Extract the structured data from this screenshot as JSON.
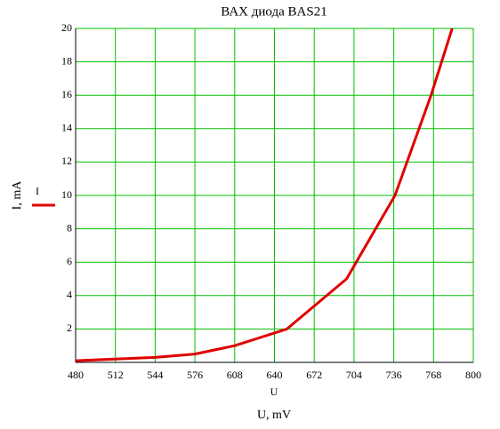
{
  "chart_data": {
    "type": "line",
    "title": "ВАХ диода BAS21",
    "x_axis_label": "U",
    "x_axis_title": "U, mV",
    "y_axis_label": "I, mA",
    "x": [
      480,
      512,
      544,
      576,
      608,
      650,
      698,
      737,
      766,
      783
    ],
    "series": [
      {
        "name": "I",
        "color": "#e00000",
        "values": [
          0.1,
          0.2,
          0.3,
          0.5,
          1,
          2,
          5,
          10,
          16,
          20
        ]
      }
    ],
    "xlim": [
      480,
      800
    ],
    "xticks": [
      480,
      512,
      544,
      576,
      608,
      640,
      672,
      704,
      736,
      768,
      800
    ],
    "ylim": [
      0,
      20
    ],
    "yticks": [
      2,
      4,
      6,
      8,
      10,
      12,
      14,
      16,
      18,
      20
    ],
    "grid": true,
    "grid_color": "#00c000"
  }
}
